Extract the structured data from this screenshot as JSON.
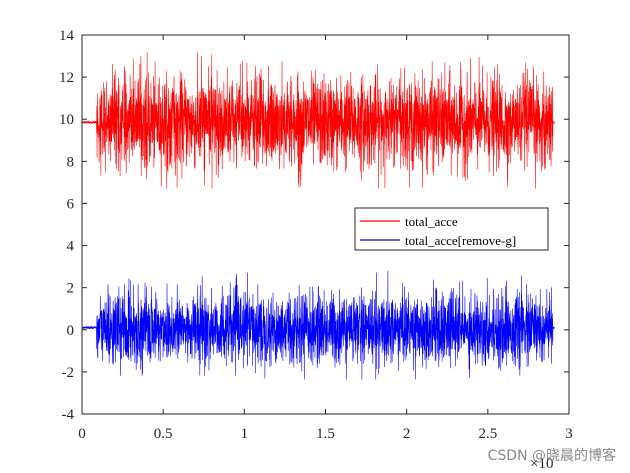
{
  "chart_data": {
    "type": "line",
    "x_tick_labels": [
      "0",
      "0.5",
      "1",
      "1.5",
      "2",
      "2.5",
      "3"
    ],
    "x_ticks": [
      0,
      0.5,
      1,
      1.5,
      2,
      2.5,
      3
    ],
    "xlim": [
      0,
      3
    ],
    "x_exponent_label": "×10",
    "y_tick_labels": [
      "-4",
      "-2",
      "0",
      "2",
      "4",
      "6",
      "8",
      "10",
      "12",
      "14"
    ],
    "y_ticks": [
      -4,
      -2,
      0,
      2,
      4,
      6,
      8,
      10,
      12,
      14
    ],
    "ylim": [
      -4,
      14
    ],
    "grid": false,
    "legend_position": "right",
    "series": [
      {
        "name": "total_acce",
        "color": "#ff0000",
        "x_range": [
          0,
          2.91
        ],
        "active_range": [
          0.09,
          2.9
        ],
        "rest_value": 9.85,
        "mean": 9.85,
        "approx_min": 6.7,
        "approx_max": 13.2
      },
      {
        "name": "total_acce[remove-g]",
        "color": "#0000ff",
        "x_range": [
          0,
          2.91
        ],
        "active_range": [
          0.09,
          2.9
        ],
        "rest_value": 0.1,
        "mean": 0.05,
        "approx_min": -2.4,
        "approx_max": 2.8
      }
    ]
  },
  "watermark": "CSDN @晓晨的博客"
}
